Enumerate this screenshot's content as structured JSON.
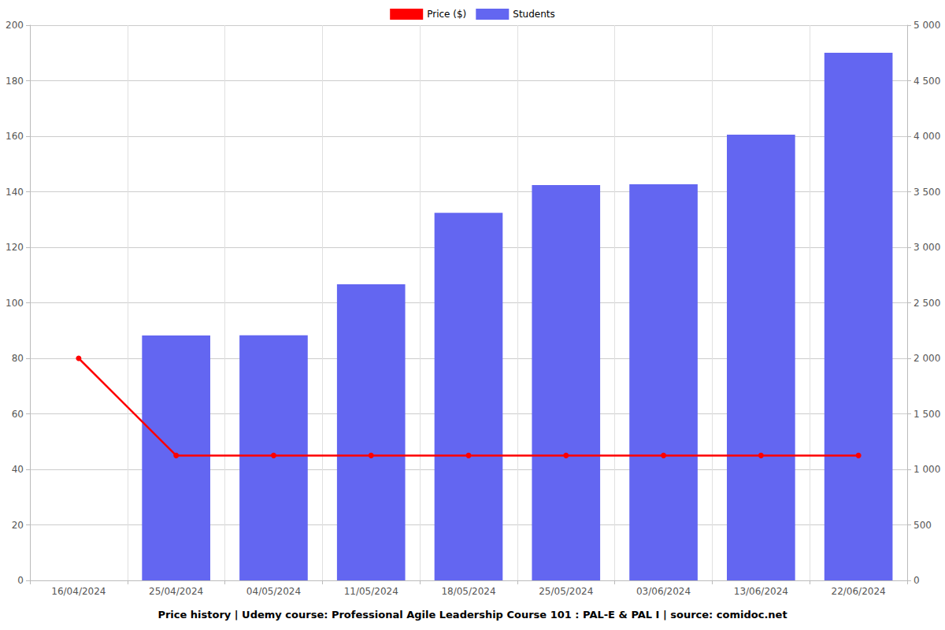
{
  "chart_data": {
    "type": "bar",
    "title": "Price history | Udemy course: Professional Agile Leadership Course 101 : PAL-E & PAL I | source: comidoc.net",
    "categories": [
      "16/04/2024",
      "25/04/2024",
      "04/05/2024",
      "11/05/2024",
      "18/05/2024",
      "25/05/2024",
      "03/06/2024",
      "13/06/2024",
      "22/06/2024"
    ],
    "series": [
      {
        "name": "Price ($)",
        "type": "line",
        "color": "#ff0000",
        "marker": "circle",
        "values": [
          80,
          45,
          45,
          45,
          45,
          45,
          45,
          45,
          45
        ]
      },
      {
        "name": "Students",
        "type": "bar",
        "color": "#6366f1",
        "axis": "y2",
        "values": [
          null,
          2206,
          2208,
          2667,
          3310,
          3560,
          3567,
          4015,
          4752
        ]
      }
    ],
    "ylim": [
      0,
      200
    ],
    "yticks": [
      0,
      20,
      40,
      60,
      80,
      100,
      120,
      140,
      160,
      180,
      200
    ],
    "y2lim": [
      0,
      5000
    ],
    "y2ticks": [
      0,
      500,
      {
        "value": 1000,
        "label": "1 000"
      },
      {
        "value": 1500,
        "label": "1 500"
      },
      {
        "value": 2000,
        "label": "2 000"
      },
      {
        "value": 2500,
        "label": "2 500"
      },
      {
        "value": 3000,
        "label": "3 000"
      },
      {
        "value": 3500,
        "label": "3 500"
      },
      {
        "value": 4000,
        "label": "4 000"
      },
      {
        "value": 4500,
        "label": "4 500"
      },
      {
        "value": 5000,
        "label": "5 000"
      }
    ],
    "grid": true,
    "legend": "top"
  }
}
